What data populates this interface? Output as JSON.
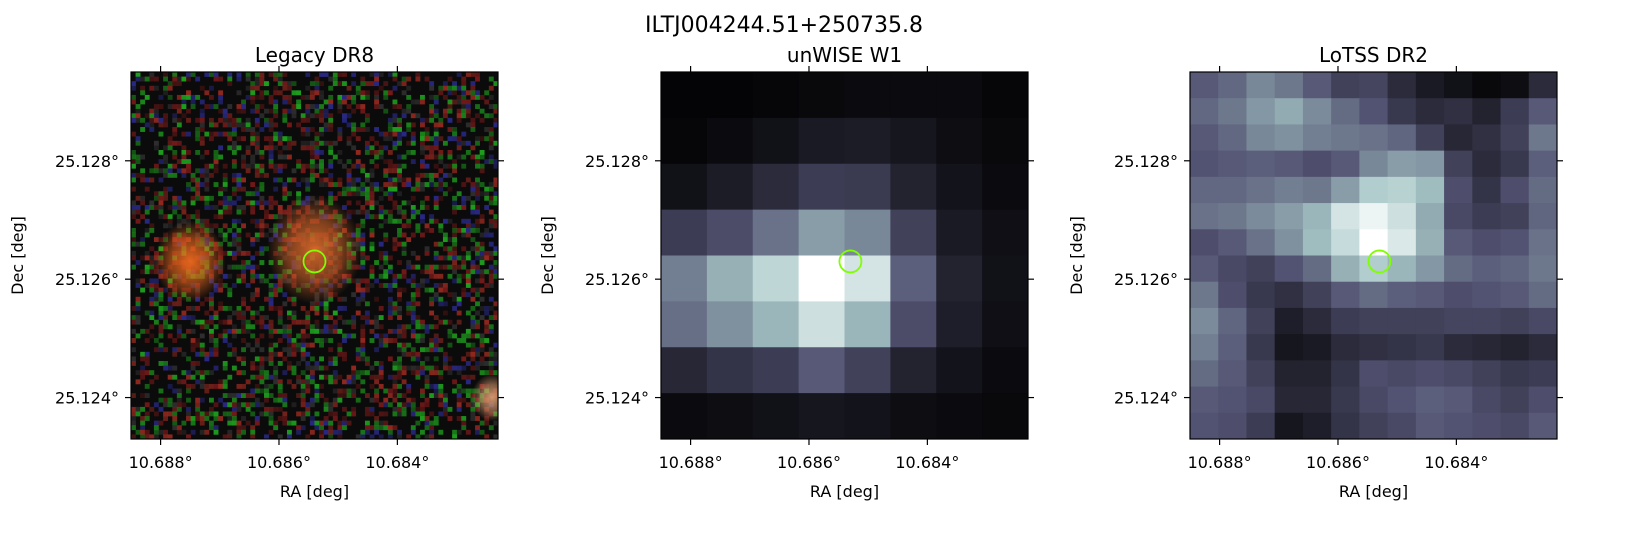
{
  "suptitle": "ILTJ004244.51+250735.8",
  "colors": {
    "marker": "#7fff00",
    "axes": "#000000"
  },
  "chart_data": [
    {
      "type": "heatmap",
      "title": "Legacy DR8",
      "xlabel": "RA [deg]",
      "ylabel": "Dec [deg]",
      "xlim": [
        10.6885,
        10.6823
      ],
      "ylim": [
        25.1233,
        25.1295
      ],
      "x_ticks": [
        10.688,
        10.686,
        10.684
      ],
      "x_tick_labels": [
        "10.688°",
        "10.686°",
        "10.684°"
      ],
      "y_ticks": [
        25.128,
        25.126,
        25.124
      ],
      "y_tick_labels": [
        "25.128°",
        "25.126°",
        "25.124°"
      ],
      "image": "rgb color composite (g,r,z), noisy background",
      "sources": [
        {
          "ra": 10.6875,
          "dec": 25.1263,
          "color": "#ef6a1e",
          "size": 0.0006
        },
        {
          "ra": 10.6854,
          "dec": 25.1265,
          "color": "#d8692a",
          "size": 0.0008
        },
        {
          "ra": 10.6824,
          "dec": 25.124,
          "color": "#d89a70",
          "size": 0.00035
        }
      ],
      "marker": {
        "ra": 10.6854,
        "dec": 25.1263
      }
    },
    {
      "type": "heatmap",
      "title": "unWISE W1",
      "xlabel": "RA [deg]",
      "ylabel": "Dec [deg]",
      "xlim": [
        10.6885,
        10.6823
      ],
      "ylim": [
        25.1233,
        25.1295
      ],
      "x_ticks": [
        10.688,
        10.686,
        10.684
      ],
      "x_tick_labels": [
        "10.688°",
        "10.686°",
        "10.684°"
      ],
      "y_ticks": [
        25.128,
        25.126,
        25.124
      ],
      "y_tick_labels": [
        "25.128°",
        "25.126°",
        "25.124°"
      ],
      "colormap": "bone",
      "grid": [
        [
          0.02,
          0.02,
          0.03,
          0.04,
          0.05,
          0.05,
          0.05,
          0.03
        ],
        [
          0.03,
          0.05,
          0.08,
          0.12,
          0.13,
          0.1,
          0.06,
          0.04
        ],
        [
          0.08,
          0.13,
          0.2,
          0.28,
          0.27,
          0.16,
          0.09,
          0.05
        ],
        [
          0.28,
          0.35,
          0.48,
          0.62,
          0.55,
          0.3,
          0.12,
          0.07
        ],
        [
          0.52,
          0.68,
          0.82,
          1.0,
          0.88,
          0.42,
          0.16,
          0.08
        ],
        [
          0.47,
          0.58,
          0.7,
          0.86,
          0.7,
          0.35,
          0.14,
          0.07
        ],
        [
          0.18,
          0.24,
          0.28,
          0.4,
          0.3,
          0.16,
          0.09,
          0.05
        ],
        [
          0.05,
          0.06,
          0.08,
          0.1,
          0.09,
          0.06,
          0.05,
          0.04
        ]
      ],
      "marker": {
        "ra": 10.6853,
        "dec": 25.1263
      }
    },
    {
      "type": "heatmap",
      "title": "LoTSS DR2",
      "xlabel": "RA [deg]",
      "ylabel": "Dec [deg]",
      "xlim": [
        10.6885,
        10.6823
      ],
      "ylim": [
        25.1233,
        25.1295
      ],
      "x_ticks": [
        10.688,
        10.686,
        10.684
      ],
      "x_tick_labels": [
        "10.688°",
        "10.686°",
        "10.684°"
      ],
      "y_ticks": [
        25.128,
        25.126,
        25.124
      ],
      "y_tick_labels": [
        "25.128°",
        "25.126°",
        "25.124°"
      ],
      "colormap": "bone",
      "grid": [
        [
          0.4,
          0.45,
          0.55,
          0.5,
          0.4,
          0.3,
          0.32,
          0.2,
          0.12,
          0.08,
          0.04,
          0.06,
          0.2
        ],
        [
          0.45,
          0.5,
          0.6,
          0.66,
          0.56,
          0.46,
          0.38,
          0.26,
          0.2,
          0.22,
          0.16,
          0.28,
          0.4
        ],
        [
          0.4,
          0.45,
          0.55,
          0.58,
          0.52,
          0.5,
          0.48,
          0.44,
          0.3,
          0.18,
          0.22,
          0.3,
          0.5
        ],
        [
          0.38,
          0.4,
          0.42,
          0.4,
          0.36,
          0.4,
          0.55,
          0.62,
          0.6,
          0.3,
          0.2,
          0.26,
          0.42
        ],
        [
          0.45,
          0.45,
          0.48,
          0.52,
          0.5,
          0.62,
          0.78,
          0.8,
          0.72,
          0.36,
          0.24,
          0.36,
          0.46
        ],
        [
          0.48,
          0.5,
          0.56,
          0.62,
          0.7,
          0.88,
          0.95,
          0.86,
          0.66,
          0.34,
          0.28,
          0.3,
          0.44
        ],
        [
          0.36,
          0.4,
          0.48,
          0.58,
          0.72,
          0.84,
          1.0,
          0.9,
          0.68,
          0.4,
          0.36,
          0.38,
          0.48
        ],
        [
          0.4,
          0.34,
          0.3,
          0.38,
          0.46,
          0.68,
          0.78,
          0.7,
          0.6,
          0.46,
          0.42,
          0.44,
          0.5
        ],
        [
          0.5,
          0.36,
          0.26,
          0.22,
          0.3,
          0.4,
          0.46,
          0.42,
          0.4,
          0.36,
          0.38,
          0.4,
          0.46
        ],
        [
          0.56,
          0.44,
          0.3,
          0.14,
          0.2,
          0.28,
          0.3,
          0.3,
          0.3,
          0.32,
          0.32,
          0.3,
          0.34
        ],
        [
          0.52,
          0.42,
          0.26,
          0.1,
          0.12,
          0.2,
          0.22,
          0.24,
          0.26,
          0.2,
          0.18,
          0.16,
          0.2
        ],
        [
          0.46,
          0.4,
          0.3,
          0.16,
          0.16,
          0.24,
          0.36,
          0.34,
          0.36,
          0.34,
          0.3,
          0.26,
          0.28
        ],
        [
          0.4,
          0.38,
          0.34,
          0.18,
          0.18,
          0.26,
          0.34,
          0.38,
          0.42,
          0.4,
          0.34,
          0.3,
          0.36
        ],
        [
          0.38,
          0.36,
          0.28,
          0.1,
          0.14,
          0.24,
          0.3,
          0.34,
          0.4,
          0.38,
          0.36,
          0.34,
          0.4
        ]
      ],
      "marker": {
        "ra": 10.6853,
        "dec": 25.1263
      }
    }
  ]
}
